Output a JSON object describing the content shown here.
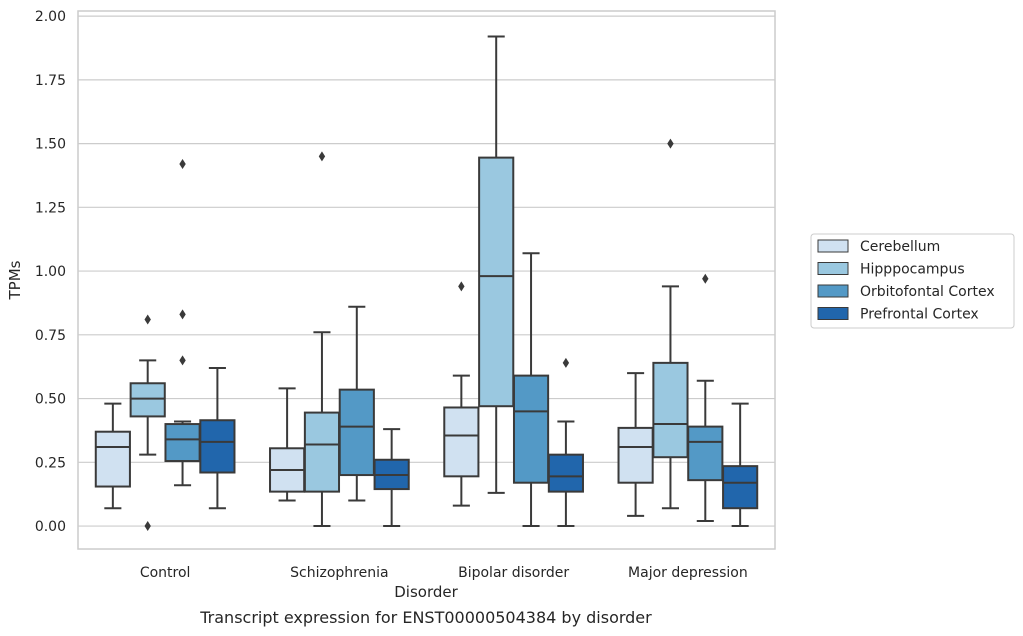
{
  "chart_data": {
    "type": "box",
    "title": "Transcript expression for ENST00000504384 by disorder",
    "xlabel": "Disorder",
    "ylabel": "TPMs",
    "ylim": [
      -0.09,
      2.02
    ],
    "yticks": [
      "0.00",
      "0.25",
      "0.50",
      "0.75",
      "1.00",
      "1.25",
      "1.50",
      "1.75",
      "2.00"
    ],
    "grid": true,
    "legend_position": "right",
    "categories": [
      "Control",
      "Schizophrenia",
      "Bipolar disorder",
      "Major depression"
    ],
    "series": [
      {
        "name": "Cerebellum",
        "color": "#d0e1f1",
        "boxes": [
          {
            "whislo": 0.07,
            "q1": 0.155,
            "med": 0.31,
            "q3": 0.37,
            "whishi": 0.48,
            "fliers": []
          },
          {
            "whislo": 0.1,
            "q1": 0.135,
            "med": 0.22,
            "q3": 0.305,
            "whishi": 0.54,
            "fliers": []
          },
          {
            "whislo": 0.08,
            "q1": 0.195,
            "med": 0.355,
            "q3": 0.465,
            "whishi": 0.59,
            "fliers": [
              0.94
            ]
          },
          {
            "whislo": 0.04,
            "q1": 0.17,
            "med": 0.31,
            "q3": 0.385,
            "whishi": 0.6,
            "fliers": []
          }
        ]
      },
      {
        "name": "Hipppocampus",
        "color": "#9ac8e0",
        "boxes": [
          {
            "whislo": 0.28,
            "q1": 0.43,
            "med": 0.5,
            "q3": 0.56,
            "whishi": 0.65,
            "fliers": [
              0.81,
              0.0
            ]
          },
          {
            "whislo": 0.0,
            "q1": 0.135,
            "med": 0.32,
            "q3": 0.445,
            "whishi": 0.76,
            "fliers": [
              1.45
            ]
          },
          {
            "whislo": 0.13,
            "q1": 0.47,
            "med": 0.98,
            "q3": 1.445,
            "whishi": 1.92,
            "fliers": []
          },
          {
            "whislo": 0.07,
            "q1": 0.27,
            "med": 0.4,
            "q3": 0.64,
            "whishi": 0.94,
            "fliers": [
              1.5
            ]
          }
        ]
      },
      {
        "name": "Orbitofontal Cortex",
        "color": "#5399c6",
        "boxes": [
          {
            "whislo": 0.16,
            "q1": 0.255,
            "med": 0.34,
            "q3": 0.4,
            "whishi": 0.41,
            "fliers": [
              0.83,
              0.65,
              1.42
            ]
          },
          {
            "whislo": 0.1,
            "q1": 0.2,
            "med": 0.39,
            "q3": 0.535,
            "whishi": 0.86,
            "fliers": []
          },
          {
            "whislo": 0.0,
            "q1": 0.17,
            "med": 0.45,
            "q3": 0.59,
            "whishi": 1.07,
            "fliers": []
          },
          {
            "whislo": 0.02,
            "q1": 0.18,
            "med": 0.33,
            "q3": 0.39,
            "whishi": 0.57,
            "fliers": [
              0.97
            ]
          }
        ]
      },
      {
        "name": "Prefrontal Cortex",
        "color": "#2166ac",
        "boxes": [
          {
            "whislo": 0.07,
            "q1": 0.21,
            "med": 0.33,
            "q3": 0.415,
            "whishi": 0.62,
            "fliers": []
          },
          {
            "whislo": 0.0,
            "q1": 0.145,
            "med": 0.2,
            "q3": 0.26,
            "whishi": 0.38,
            "fliers": []
          },
          {
            "whislo": 0.0,
            "q1": 0.135,
            "med": 0.195,
            "q3": 0.28,
            "whishi": 0.41,
            "fliers": [
              0.64
            ]
          },
          {
            "whislo": 0.0,
            "q1": 0.07,
            "med": 0.17,
            "q3": 0.235,
            "whishi": 0.48,
            "fliers": []
          }
        ]
      }
    ]
  }
}
